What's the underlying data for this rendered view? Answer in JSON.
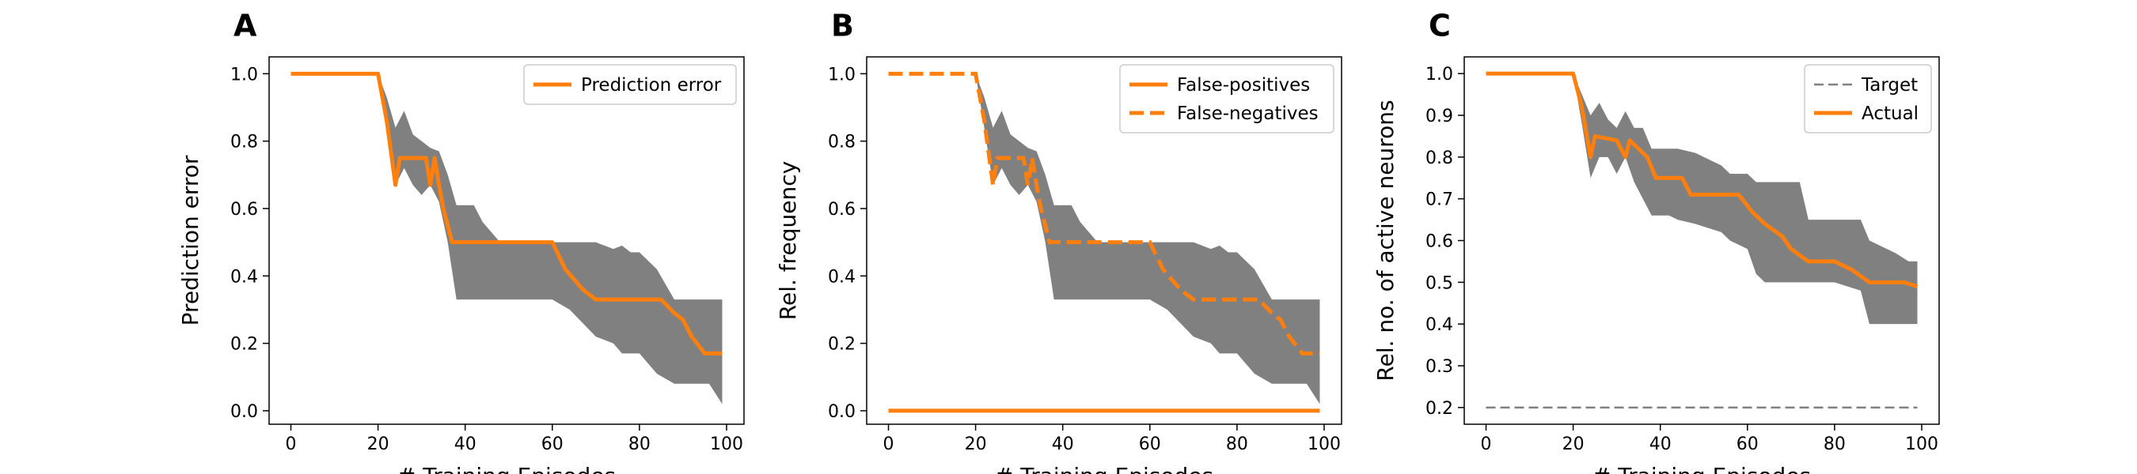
{
  "colors": {
    "orange": "#ff7f0e",
    "band": "#808080",
    "target": "#808080"
  },
  "chart_data": [
    {
      "panel": "A",
      "type": "line",
      "xlabel": "# Training Episodes",
      "ylabel": "Prediction error",
      "xlim": [
        -5,
        104
      ],
      "ylim": [
        -0.04,
        1.05
      ],
      "xticks": [
        0,
        20,
        40,
        60,
        80,
        100
      ],
      "yticks": [
        0.0,
        0.2,
        0.4,
        0.6,
        0.8,
        1.0
      ],
      "ytick_labels": [
        "0.0",
        "0.2",
        "0.4",
        "0.6",
        "0.8",
        "1.0"
      ],
      "legend": "top-right",
      "band": {
        "x": [
          0,
          20,
          22,
          24,
          26,
          28,
          30,
          32,
          34,
          36,
          38,
          42,
          44,
          48,
          60,
          64,
          70,
          74,
          76,
          78,
          80,
          84,
          88,
          92,
          96,
          99
        ],
        "upper": [
          1.0,
          1.0,
          0.93,
          0.84,
          0.89,
          0.82,
          0.8,
          0.78,
          0.77,
          0.7,
          0.61,
          0.61,
          0.56,
          0.5,
          0.5,
          0.5,
          0.5,
          0.48,
          0.49,
          0.47,
          0.47,
          0.42,
          0.33,
          0.33,
          0.33,
          0.33
        ],
        "lower": [
          1.0,
          1.0,
          0.84,
          0.67,
          0.72,
          0.67,
          0.64,
          0.67,
          0.62,
          0.5,
          0.33,
          0.33,
          0.33,
          0.33,
          0.33,
          0.3,
          0.22,
          0.2,
          0.17,
          0.17,
          0.17,
          0.11,
          0.08,
          0.08,
          0.08,
          0.02
        ]
      },
      "series": [
        {
          "name": "Prediction error",
          "style": "solid",
          "x": [
            0,
            20,
            22,
            24,
            25,
            27,
            31,
            32,
            33,
            34,
            35,
            37,
            39,
            58,
            60,
            63,
            65,
            67,
            70,
            85,
            88,
            90,
            92,
            95,
            97,
            99
          ],
          "y": [
            1.0,
            1.0,
            0.86,
            0.67,
            0.75,
            0.75,
            0.75,
            0.67,
            0.75,
            0.67,
            0.6,
            0.5,
            0.5,
            0.5,
            0.5,
            0.42,
            0.39,
            0.36,
            0.33,
            0.33,
            0.29,
            0.27,
            0.22,
            0.17,
            0.17,
            0.17
          ]
        }
      ]
    },
    {
      "panel": "B",
      "type": "line",
      "xlabel": "# Training Episodes",
      "ylabel": "Rel. frequency",
      "xlim": [
        -5,
        104
      ],
      "ylim": [
        -0.04,
        1.05
      ],
      "xticks": [
        0,
        20,
        40,
        60,
        80,
        100
      ],
      "yticks": [
        0.0,
        0.2,
        0.4,
        0.6,
        0.8,
        1.0
      ],
      "ytick_labels": [
        "0.0",
        "0.2",
        "0.4",
        "0.6",
        "0.8",
        "1.0"
      ],
      "legend": "top-right",
      "band": {
        "x": [
          0,
          20,
          22,
          24,
          26,
          28,
          30,
          32,
          34,
          36,
          38,
          42,
          44,
          48,
          60,
          64,
          70,
          74,
          76,
          78,
          80,
          84,
          88,
          92,
          96,
          99
        ],
        "upper": [
          1.0,
          1.0,
          0.93,
          0.84,
          0.89,
          0.82,
          0.8,
          0.78,
          0.77,
          0.7,
          0.61,
          0.61,
          0.56,
          0.5,
          0.5,
          0.5,
          0.5,
          0.48,
          0.49,
          0.47,
          0.47,
          0.42,
          0.33,
          0.33,
          0.33,
          0.33
        ],
        "lower": [
          1.0,
          1.0,
          0.84,
          0.67,
          0.72,
          0.67,
          0.64,
          0.67,
          0.62,
          0.5,
          0.33,
          0.33,
          0.33,
          0.33,
          0.33,
          0.3,
          0.22,
          0.2,
          0.17,
          0.17,
          0.17,
          0.11,
          0.08,
          0.08,
          0.08,
          0.02
        ]
      },
      "series": [
        {
          "name": "False-positives",
          "style": "solid",
          "x": [
            0,
            99
          ],
          "y": [
            0.0,
            0.0
          ]
        },
        {
          "name": "False-negatives",
          "style": "dashed",
          "x": [
            0,
            20,
            22,
            24,
            25,
            27,
            31,
            32,
            33,
            34,
            35,
            37,
            39,
            58,
            60,
            63,
            65,
            67,
            70,
            85,
            88,
            90,
            92,
            95,
            97,
            99
          ],
          "y": [
            1.0,
            1.0,
            0.86,
            0.67,
            0.75,
            0.75,
            0.75,
            0.67,
            0.75,
            0.67,
            0.6,
            0.5,
            0.5,
            0.5,
            0.5,
            0.42,
            0.39,
            0.36,
            0.33,
            0.33,
            0.29,
            0.27,
            0.22,
            0.17,
            0.17,
            0.17
          ]
        }
      ]
    },
    {
      "panel": "C",
      "type": "line",
      "xlabel": "# Training Episodes",
      "ylabel": "Rel. no. of active neurons",
      "xlim": [
        -5,
        104
      ],
      "ylim": [
        0.16,
        1.04
      ],
      "xticks": [
        0,
        20,
        40,
        60,
        80,
        100
      ],
      "yticks": [
        0.2,
        0.3,
        0.4,
        0.5,
        0.6,
        0.7,
        0.8,
        0.9,
        1.0
      ],
      "ytick_labels": [
        "0.2",
        "0.3",
        "0.4",
        "0.5",
        "0.6",
        "0.7",
        "0.8",
        "0.9",
        "1.0"
      ],
      "legend": "top-right",
      "band": {
        "x": [
          0,
          20,
          22,
          24,
          26,
          28,
          30,
          32,
          34,
          36,
          38,
          42,
          44,
          48,
          54,
          56,
          60,
          62,
          64,
          68,
          72,
          74,
          80,
          86,
          88,
          94,
          97,
          99
        ],
        "upper": [
          1.0,
          1.0,
          0.95,
          0.9,
          0.93,
          0.89,
          0.87,
          0.91,
          0.87,
          0.87,
          0.82,
          0.82,
          0.82,
          0.81,
          0.78,
          0.76,
          0.76,
          0.74,
          0.74,
          0.74,
          0.74,
          0.65,
          0.65,
          0.65,
          0.6,
          0.57,
          0.55,
          0.55
        ],
        "lower": [
          1.0,
          1.0,
          0.88,
          0.75,
          0.8,
          0.8,
          0.76,
          0.8,
          0.74,
          0.7,
          0.66,
          0.66,
          0.65,
          0.64,
          0.62,
          0.6,
          0.58,
          0.52,
          0.5,
          0.5,
          0.5,
          0.5,
          0.5,
          0.48,
          0.4,
          0.4,
          0.4,
          0.4
        ]
      },
      "series": [
        {
          "name": "Target",
          "style": "dashed-thin",
          "x": [
            0,
            99
          ],
          "y": [
            0.2,
            0.2
          ]
        },
        {
          "name": "Actual",
          "style": "solid",
          "x": [
            0,
            20,
            22,
            24,
            25,
            30,
            32,
            33,
            35,
            37,
            39,
            45,
            47,
            58,
            61,
            64,
            68,
            70,
            74,
            80,
            84,
            88,
            92,
            96,
            99
          ],
          "y": [
            1.0,
            1.0,
            0.92,
            0.8,
            0.85,
            0.84,
            0.8,
            0.84,
            0.82,
            0.8,
            0.75,
            0.75,
            0.71,
            0.71,
            0.67,
            0.64,
            0.61,
            0.58,
            0.55,
            0.55,
            0.53,
            0.5,
            0.5,
            0.5,
            0.49
          ]
        }
      ]
    }
  ]
}
